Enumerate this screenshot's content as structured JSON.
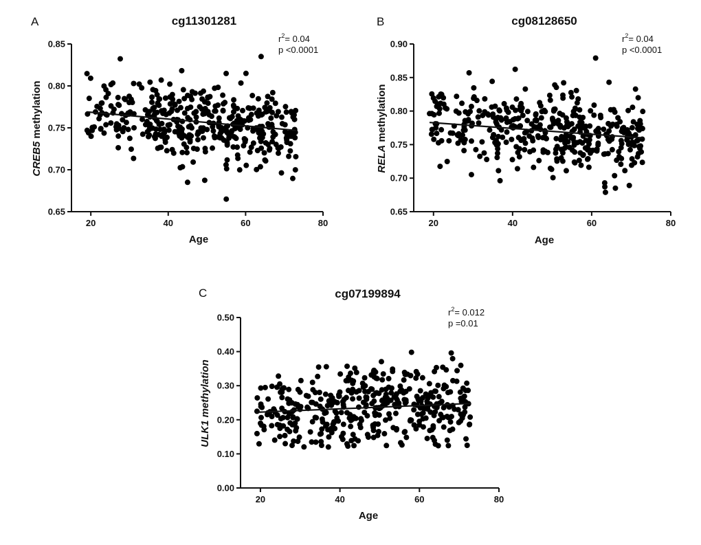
{
  "chart_data": [
    {
      "panel": "A",
      "type": "scatter",
      "title": "cg11301281",
      "xlabel": "Age",
      "ylabel_gene": "CREB5",
      "ylabel_rest": " methylation",
      "xlim": [
        15,
        80
      ],
      "ylim": [
        0.65,
        0.85
      ],
      "xticks": [
        20,
        40,
        60,
        80
      ],
      "yticks": [
        0.65,
        0.7,
        0.75,
        0.8,
        0.85
      ],
      "ytick_labels": [
        "0.65",
        "0.70",
        "0.75",
        "0.80",
        "0.85"
      ],
      "stat_r2_prefix": "r",
      "stat_r2_sup": "2",
      "stat_r2_value": "= 0.04",
      "stat_p": "p <0.0001",
      "fit_line": {
        "x": [
          19,
          73
        ],
        "y": [
          0.769,
          0.747
        ]
      },
      "n_points": 420,
      "seed": 11
    },
    {
      "panel": "B",
      "type": "scatter",
      "title": "cg08128650",
      "xlabel": "Age",
      "ylabel_gene": "RELA",
      "ylabel_rest": " methylation",
      "xlim": [
        15,
        80
      ],
      "ylim": [
        0.65,
        0.9
      ],
      "xticks": [
        20,
        40,
        60,
        80
      ],
      "yticks": [
        0.65,
        0.7,
        0.75,
        0.8,
        0.85,
        0.9
      ],
      "ytick_labels": [
        "0.65",
        "0.70",
        "0.75",
        "0.80",
        "0.85",
        "0.90"
      ],
      "stat_r2_prefix": "r",
      "stat_r2_sup": "2",
      "stat_r2_value": "= 0.04",
      "stat_p": "p <0.0001",
      "fit_line": {
        "x": [
          19,
          73
        ],
        "y": [
          0.783,
          0.76
        ]
      },
      "n_points": 420,
      "seed": 23
    },
    {
      "panel": "C",
      "type": "scatter",
      "title": "cg07199894",
      "xlabel": "Age",
      "ylabel_gene": "ULK1 methylation",
      "ylabel_rest": "",
      "xlim": [
        15,
        80
      ],
      "ylim": [
        0.0,
        0.5
      ],
      "xticks": [
        20,
        40,
        60,
        80
      ],
      "yticks": [
        0.0,
        0.1,
        0.2,
        0.3,
        0.4,
        0.5
      ],
      "ytick_labels": [
        "0.00",
        "0.10",
        "0.20",
        "0.30",
        "0.40",
        "0.50"
      ],
      "stat_r2_prefix": "r",
      "stat_r2_sup": "2",
      "stat_r2_value": "= 0.012",
      "stat_p": "p =0.01",
      "fit_line": {
        "x": [
          19,
          73
        ],
        "y": [
          0.222,
          0.248
        ]
      },
      "n_points": 420,
      "seed": 37
    }
  ]
}
